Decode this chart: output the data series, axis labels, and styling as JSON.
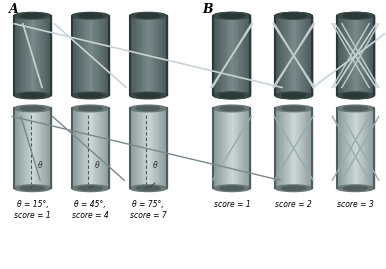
{
  "title": "",
  "label_A": "A",
  "label_B": "B",
  "bg_color": "#ffffff",
  "cylinder_color_dark_top": "#6a7a7a",
  "cylinder_color_dark_mid": "#8a9a9a",
  "cylinder_color_light_top": "#a0b0b0",
  "cylinder_color_light_bottom": "#c0d0d0",
  "bottom_labels_left": [
    "θ = 15°,\nscore = 1",
    "θ = 45°,\nscore = 4",
    "θ = 75°,\nscore = 7"
  ],
  "bottom_labels_right": [
    "score = 1",
    "score = 2",
    "score = 3"
  ],
  "line_color_dark": "#d0d8d8",
  "line_color_light": "#c8d0d0",
  "dashed_color": "#555555",
  "angle_color": "#333333"
}
